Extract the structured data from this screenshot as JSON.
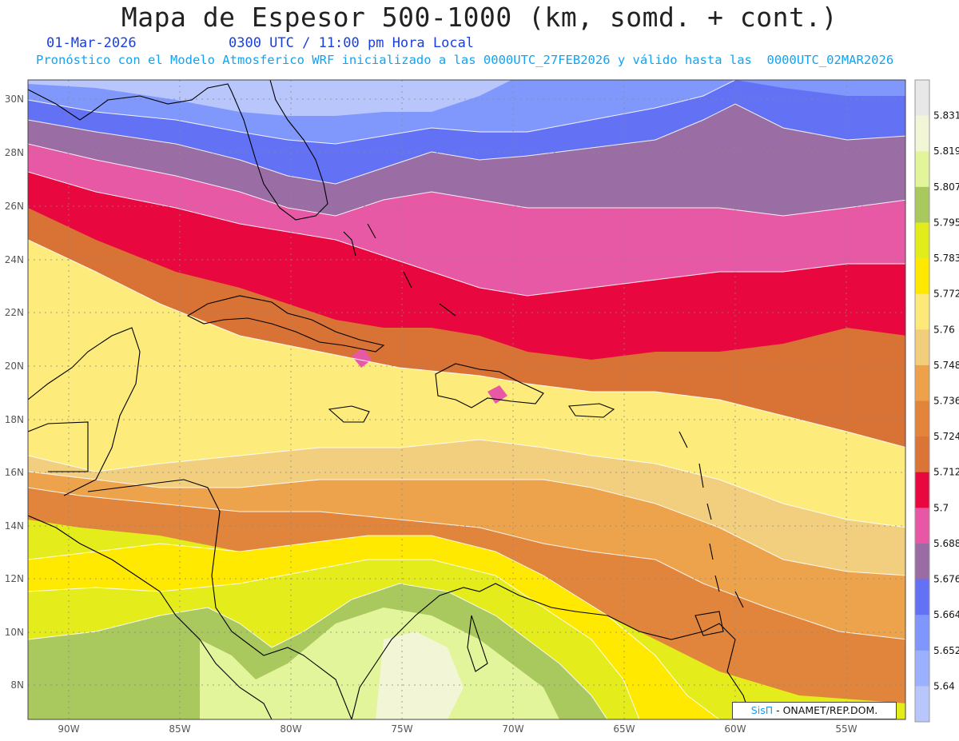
{
  "header": {
    "title": "Mapa de Espesor 500-1000 (km, somd. + cont.)",
    "date": "01-Mar-2026",
    "time": "0300 UTC / 11:00 pm Hora Local",
    "model_note": "Pronóstico con el Modelo Atmosferico WRF inicializado a las 0000UTC_27FEB2026 y válido hasta las  0000UTC_02MAR2026"
  },
  "map": {
    "lon_labels": [
      "90W",
      "85W",
      "80W",
      "75W",
      "70W",
      "65W",
      "60W",
      "55W"
    ],
    "lat_labels": [
      "30N",
      "28N",
      "26N",
      "24N",
      "22N",
      "20N",
      "18N",
      "16N",
      "14N",
      "12N",
      "10N",
      "8N"
    ]
  },
  "colorbar": {
    "levels": [
      "5.831",
      "5.819",
      "5.807",
      "5.795",
      "5.783",
      "5.772",
      "5.76",
      "5.748",
      "5.736",
      "5.724",
      "5.712",
      "5.7",
      "5.688",
      "5.676",
      "5.664",
      "5.652",
      "5.64"
    ],
    "colors": [
      "#e8e8e8",
      "#f2f5d6",
      "#e3f59a",
      "#a9c85e",
      "#e1ec1a",
      "#ffe800",
      "#fde97a",
      "#f2cd7c",
      "#eca14a",
      "#e2853a",
      "#db7437",
      "#e8073e",
      "#e757a5",
      "#996da4",
      "#6371f5",
      "#7f97fc",
      "#9bb1ff",
      "#b9c6fc"
    ]
  },
  "credit": {
    "brand": "SisΠ",
    "text": "- ONAMET/REP.DOM."
  }
}
